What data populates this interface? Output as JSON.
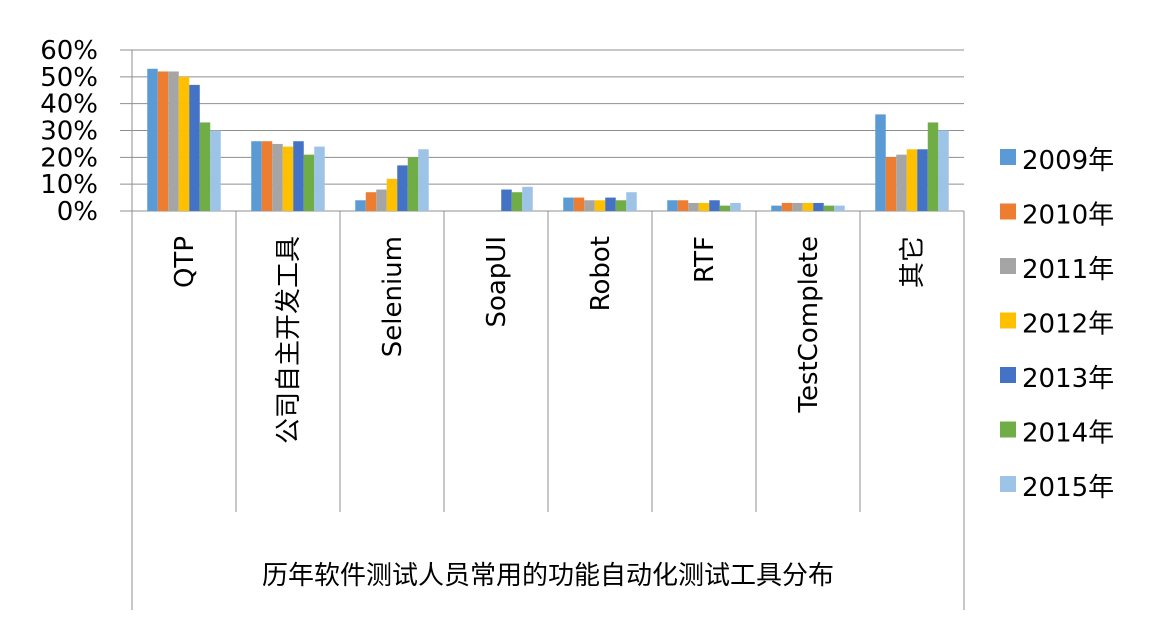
{
  "chart_data": {
    "type": "bar",
    "xlabel": "历年软件测试人员常用的功能自动化测试工具分布",
    "ylabel": "",
    "ylim": [
      0,
      60
    ],
    "yticks": [
      "0%",
      "10%",
      "20%",
      "30%",
      "40%",
      "50%",
      "60%"
    ],
    "categories": [
      "QTP",
      "公司自主开发工具",
      "Selenium",
      "SoapUI",
      "Robot",
      "RTF",
      "TestComplete",
      "其它"
    ],
    "series": [
      {
        "name": "2009年",
        "color": "#5B9BD5",
        "values": [
          53,
          26,
          4,
          null,
          5,
          4,
          2,
          36
        ]
      },
      {
        "name": "2010年",
        "color": "#ED7D31",
        "values": [
          52,
          26,
          7,
          null,
          5,
          4,
          3,
          20
        ]
      },
      {
        "name": "2011年",
        "color": "#A5A5A5",
        "values": [
          52,
          25,
          8,
          null,
          4,
          3,
          3,
          21
        ]
      },
      {
        "name": "2012年",
        "color": "#FFC000",
        "values": [
          50,
          24,
          12,
          null,
          4,
          3,
          3,
          23
        ]
      },
      {
        "name": "2013年",
        "color": "#4472C4",
        "values": [
          47,
          26,
          17,
          8,
          5,
          4,
          3,
          23
        ]
      },
      {
        "name": "2014年",
        "color": "#70AD47",
        "values": [
          33,
          21,
          20,
          7,
          4,
          2,
          2,
          33
        ]
      },
      {
        "name": "2015年",
        "color": "#9DC3E6",
        "values": [
          30,
          24,
          23,
          9,
          7,
          3,
          2,
          30
        ]
      }
    ],
    "grid": true,
    "legend": "right"
  }
}
